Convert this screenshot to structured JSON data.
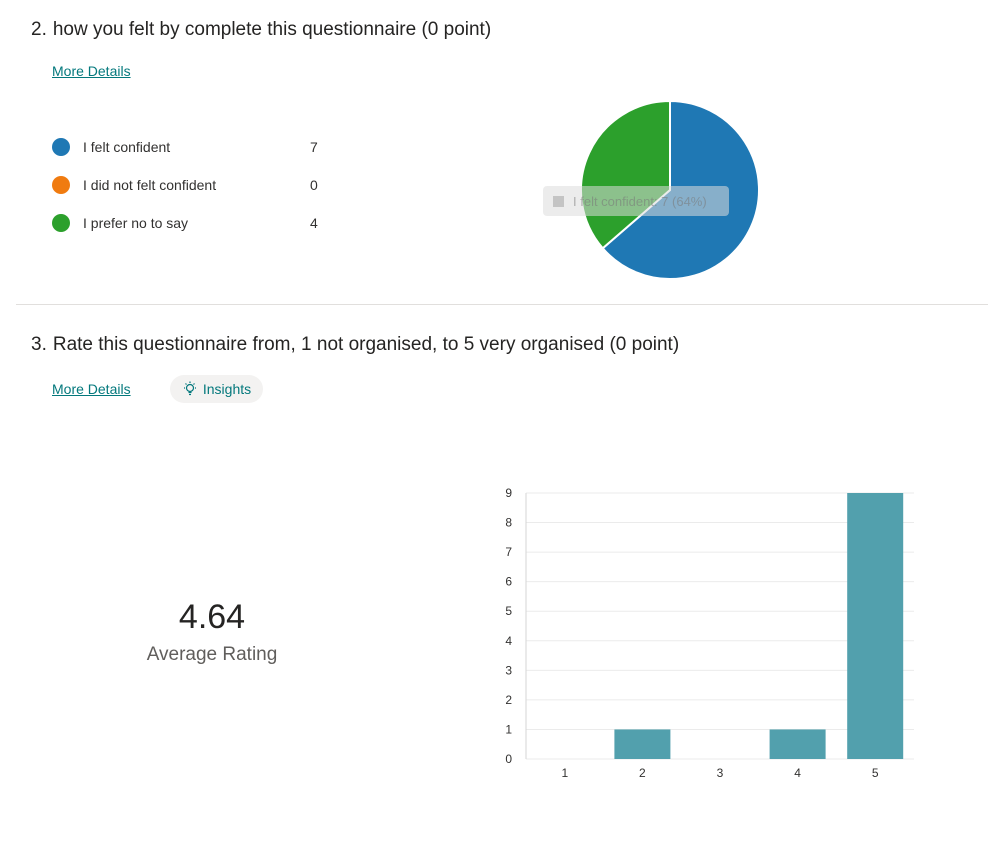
{
  "q2": {
    "number": "2.",
    "title": "how you felt by complete this questionnaire (0 point)",
    "more_details": "More Details",
    "options": [
      {
        "label": "I felt confident",
        "count": "7",
        "color": "#1f78b4"
      },
      {
        "label": "I did not felt confident",
        "count": "0",
        "color": "#f07b10"
      },
      {
        "label": "I prefer no to say",
        "count": "4",
        "color": "#2ca02c"
      }
    ],
    "tooltip": "I felt confident: 7 (64%)"
  },
  "q3": {
    "number": "3.",
    "title": "Rate this questionnaire from, 1 not organised, to 5 very organised (0 point)",
    "more_details": "More Details",
    "insights_label": "Insights",
    "average_value": "4.64",
    "average_label": "Average Rating"
  },
  "chart_data": [
    {
      "type": "pie",
      "labels": [
        "I felt confident",
        "I did not felt confident",
        "I prefer no to say"
      ],
      "values": [
        7,
        0,
        4
      ],
      "colors": [
        "#1f78b4",
        "#f07b10",
        "#2ca02c"
      ]
    },
    {
      "type": "bar",
      "categories": [
        "1",
        "2",
        "3",
        "4",
        "5"
      ],
      "values": [
        0,
        1,
        0,
        1,
        9
      ],
      "ylim": [
        0,
        9
      ],
      "yticks": [
        "0",
        "1",
        "2",
        "3",
        "4",
        "5",
        "6",
        "7",
        "8",
        "9"
      ],
      "grid": true,
      "color": "#52a0ad"
    }
  ]
}
